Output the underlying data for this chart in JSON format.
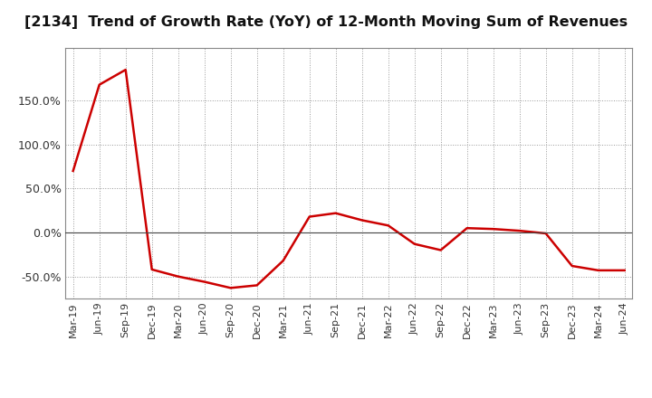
{
  "title": "[2134]  Trend of Growth Rate (YoY) of 12-Month Moving Sum of Revenues",
  "title_fontsize": 11.5,
  "line_color": "#cc0000",
  "line_width": 1.8,
  "background_color": "#ffffff",
  "plot_background_color": "#ffffff",
  "grid_color": "#999999",
  "ylim": [
    -75,
    210
  ],
  "yticks": [
    -50,
    0,
    50,
    100,
    150
  ],
  "ytick_labels": [
    "-50.0%",
    "0.0%",
    "50.0%",
    "100.0%",
    "150.0%"
  ],
  "x_labels": [
    "Mar-19",
    "Jun-19",
    "Sep-19",
    "Dec-19",
    "Mar-20",
    "Jun-20",
    "Sep-20",
    "Dec-20",
    "Mar-21",
    "Jun-21",
    "Sep-21",
    "Dec-21",
    "Mar-22",
    "Jun-22",
    "Sep-22",
    "Dec-22",
    "Mar-23",
    "Jun-23",
    "Sep-23",
    "Dec-23",
    "Mar-24",
    "Jun-24"
  ],
  "data_x": [
    0,
    1,
    2,
    3,
    4,
    5,
    6,
    7,
    8,
    9,
    10,
    11,
    12,
    13,
    14,
    15,
    16,
    17,
    18,
    19,
    20,
    21
  ],
  "data_y": [
    70,
    168,
    185,
    -42,
    -50,
    -56,
    -63,
    -60,
    -32,
    18,
    22,
    14,
    8,
    -13,
    -20,
    5,
    4,
    2,
    -1,
    -38,
    -43,
    -43
  ]
}
